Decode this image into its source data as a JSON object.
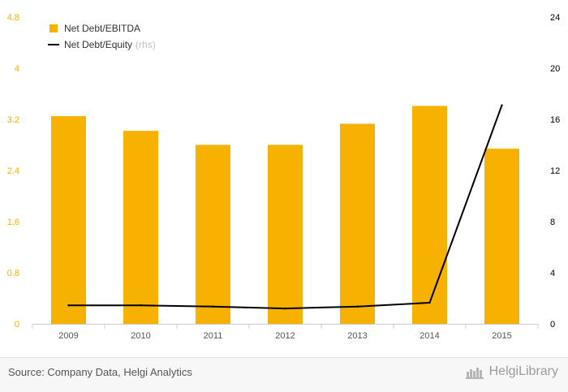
{
  "chart_data": {
    "type": "bar",
    "categories": [
      "2009",
      "2010",
      "2011",
      "2012",
      "2013",
      "2014",
      "2015"
    ],
    "series": [
      {
        "name": "Net Debt/EBITDA",
        "type": "bar",
        "axis": "left",
        "color": "#f7b100",
        "values": [
          3.25,
          3.02,
          2.8,
          2.8,
          3.13,
          3.41,
          2.74
        ]
      },
      {
        "name": "Net Debt/Equity",
        "type": "line",
        "axis": "right",
        "color": "#000000",
        "values": [
          1.45,
          1.45,
          1.35,
          1.2,
          1.35,
          1.65,
          17.1
        ]
      }
    ],
    "legend": {
      "rhs_suffix": "(rhs)",
      "placement": "top-left"
    },
    "left_axis": {
      "ylim": [
        0,
        4.8
      ],
      "ticks": [
        "0",
        "0.8",
        "1.6",
        "2.4",
        "3.2",
        "4",
        "4.8"
      ],
      "tick_color": "#f7b100"
    },
    "right_axis": {
      "ylim": [
        0,
        24
      ],
      "ticks": [
        "0",
        "4",
        "8",
        "12",
        "16",
        "20",
        "24"
      ],
      "tick_color": "#000000"
    },
    "grid": false
  },
  "footer": {
    "source": "Source: Company Data, Helgi Analytics",
    "brand": "HelgiLibrary"
  }
}
